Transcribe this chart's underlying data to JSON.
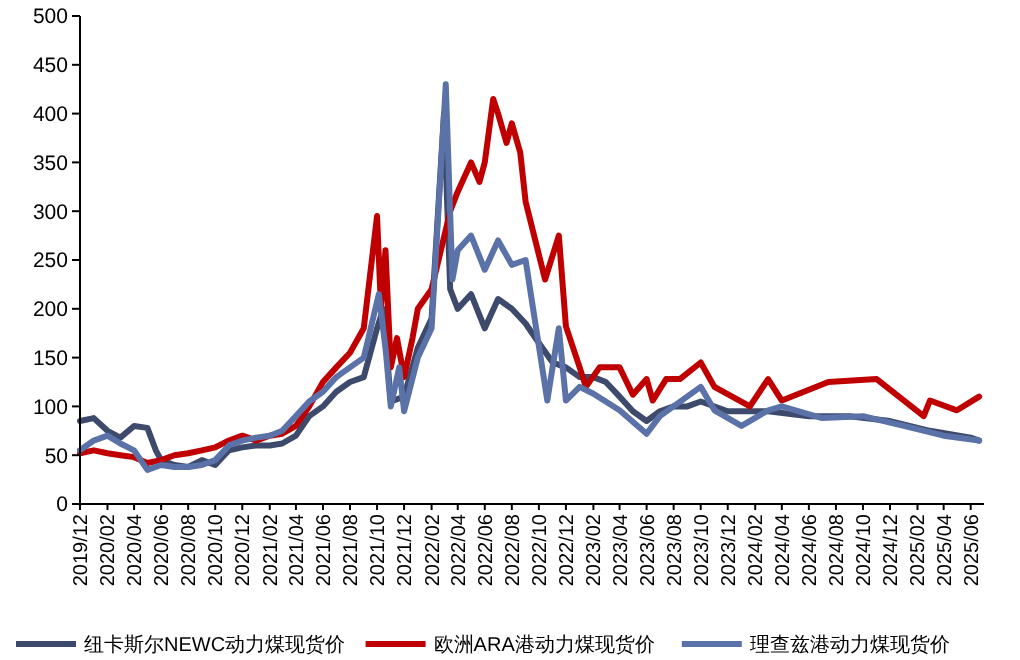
{
  "chart_data": {
    "type": "line",
    "xlim": [
      "2019-12",
      "2025-07"
    ],
    "ylim": [
      0,
      500
    ],
    "yticks": [
      0,
      50,
      100,
      150,
      200,
      250,
      300,
      350,
      400,
      450,
      500
    ],
    "xticks": [
      {
        "value": "2019-12",
        "label": "2019/12"
      },
      {
        "value": "2020-02",
        "label": "2020/02"
      },
      {
        "value": "2020-04",
        "label": "2020/04"
      },
      {
        "value": "2020-06",
        "label": "2020/06"
      },
      {
        "value": "2020-08",
        "label": "2020/08"
      },
      {
        "value": "2020-10",
        "label": "2020/10"
      },
      {
        "value": "2020-12",
        "label": "2020/12"
      },
      {
        "value": "2021-02",
        "label": "2021/02"
      },
      {
        "value": "2021-04",
        "label": "2021/04"
      },
      {
        "value": "2021-06",
        "label": "2021/06"
      },
      {
        "value": "2021-08",
        "label": "2021/08"
      },
      {
        "value": "2021-10",
        "label": "2021/10"
      },
      {
        "value": "2021-12",
        "label": "2021/12"
      },
      {
        "value": "2022-02",
        "label": "2022/02"
      },
      {
        "value": "2022-04",
        "label": "2022/04"
      },
      {
        "value": "2022-06",
        "label": "2022/06"
      },
      {
        "value": "2022-08",
        "label": "2022/08"
      },
      {
        "value": "2022-10",
        "label": "2022/10"
      },
      {
        "value": "2022-12",
        "label": "2022/12"
      },
      {
        "value": "2023-02",
        "label": "2023/02"
      },
      {
        "value": "2023-04",
        "label": "2023/04"
      },
      {
        "value": "2023-06",
        "label": "2023/06"
      },
      {
        "value": "2023-08",
        "label": "2023/08"
      },
      {
        "value": "2023-10",
        "label": "2023/10"
      },
      {
        "value": "2023-12",
        "label": "2023/12"
      },
      {
        "value": "2024-02",
        "label": "2024/02"
      },
      {
        "value": "2024-04",
        "label": "2024/04"
      },
      {
        "value": "2024-06",
        "label": "2024/06"
      },
      {
        "value": "2024-08",
        "label": "2024/08"
      },
      {
        "value": "2024-10",
        "label": "2024/10"
      },
      {
        "value": "2024-12",
        "label": "2024/12"
      },
      {
        "value": "2025-02",
        "label": "2025/02"
      },
      {
        "value": "2025-04",
        "label": "2025/04"
      },
      {
        "value": "2025-06",
        "label": "2025/06"
      }
    ],
    "grid": false,
    "legend": "bottom",
    "line_style": "solid",
    "marker": "none",
    "series": [
      {
        "name": "纽卡斯尔NEWC动力煤现货价",
        "color": "#3d4a6b",
        "x": [
          "2019-12-01",
          "2020-01-01",
          "2020-02-01",
          "2020-03-01",
          "2020-04-01",
          "2020-05-01",
          "2020-05-20",
          "2020-06-01",
          "2020-07-01",
          "2020-08-01",
          "2020-09-01",
          "2020-10-01",
          "2020-11-01",
          "2020-12-01",
          "2021-01-01",
          "2021-02-01",
          "2021-03-01",
          "2021-04-01",
          "2021-05-01",
          "2021-06-01",
          "2021-07-01",
          "2021-08-01",
          "2021-09-01",
          "2021-10-01",
          "2021-10-15",
          "2021-11-01",
          "2021-12-01",
          "2022-01-01",
          "2022-02-01",
          "2022-03-01",
          "2022-03-15",
          "2022-04-01",
          "2022-05-01",
          "2022-06-01",
          "2022-07-01",
          "2022-08-01",
          "2022-09-01",
          "2022-10-01",
          "2022-11-01",
          "2022-12-01",
          "2023-01-01",
          "2023-02-01",
          "2023-03-01",
          "2023-04-01",
          "2023-05-01",
          "2023-06-01",
          "2023-07-01",
          "2023-08-01",
          "2023-09-01",
          "2023-10-01",
          "2023-12-01",
          "2024-01-01",
          "2024-03-01",
          "2024-06-01",
          "2024-09-01",
          "2024-12-01",
          "2025-03-01",
          "2025-06-01",
          "2025-06-20"
        ],
        "values": [
          85,
          88,
          75,
          68,
          80,
          78,
          55,
          45,
          40,
          38,
          45,
          40,
          55,
          58,
          60,
          60,
          62,
          70,
          90,
          100,
          115,
          125,
          130,
          180,
          200,
          105,
          110,
          160,
          190,
          400,
          220,
          200,
          215,
          180,
          210,
          200,
          185,
          165,
          145,
          140,
          130,
          130,
          125,
          110,
          95,
          85,
          95,
          100,
          100,
          105,
          95,
          95,
          95,
          90,
          90,
          85,
          75,
          68,
          65
        ]
      },
      {
        "name": "欧洲ARA港动力煤现货价",
        "color": "#c00000",
        "x": [
          "2019-12-01",
          "2020-01-01",
          "2020-02-01",
          "2020-03-01",
          "2020-04-01",
          "2020-05-01",
          "2020-06-01",
          "2020-07-01",
          "2020-08-01",
          "2020-09-01",
          "2020-10-01",
          "2020-11-01",
          "2020-12-01",
          "2021-01-01",
          "2021-02-01",
          "2021-03-01",
          "2021-04-01",
          "2021-05-01",
          "2021-06-01",
          "2021-07-01",
          "2021-08-01",
          "2021-09-01",
          "2021-10-01",
          "2021-10-10",
          "2021-10-20",
          "2021-11-01",
          "2021-11-15",
          "2021-12-01",
          "2021-12-20",
          "2022-01-01",
          "2022-02-01",
          "2022-03-15",
          "2022-04-01",
          "2022-05-01",
          "2022-05-20",
          "2022-06-01",
          "2022-06-20",
          "2022-07-01",
          "2022-07-20",
          "2022-08-01",
          "2022-08-20",
          "2022-09-01",
          "2022-10-15",
          "2022-11-15",
          "2022-12-01",
          "2023-01-01",
          "2023-01-15",
          "2023-02-15",
          "2023-04-01",
          "2023-05-01",
          "2023-06-01",
          "2023-06-15",
          "2023-07-15",
          "2023-08-15",
          "2023-10-01",
          "2023-11-01",
          "2024-01-20",
          "2024-03-01",
          "2024-04-01",
          "2024-07-15",
          "2024-11-01",
          "2025-02-15",
          "2025-03-01",
          "2025-05-01",
          "2025-06-20"
        ],
        "values": [
          52,
          55,
          52,
          50,
          48,
          42,
          45,
          50,
          52,
          55,
          58,
          65,
          70,
          65,
          70,
          72,
          80,
          100,
          125,
          140,
          155,
          180,
          295,
          200,
          260,
          140,
          170,
          130,
          170,
          200,
          220,
          300,
          320,
          350,
          330,
          350,
          415,
          400,
          370,
          390,
          360,
          310,
          230,
          275,
          182,
          140,
          120,
          140,
          140,
          112,
          128,
          106,
          128,
          128,
          145,
          120,
          100,
          128,
          106,
          125,
          128,
          90,
          106,
          96,
          110
        ]
      },
      {
        "name": "理查兹港动力煤现货价",
        "color": "#5b72a8",
        "x": [
          "2019-12-01",
          "2020-01-01",
          "2020-02-01",
          "2020-03-01",
          "2020-04-01",
          "2020-05-01",
          "2020-06-01",
          "2020-07-01",
          "2020-08-01",
          "2020-09-01",
          "2020-10-01",
          "2020-11-01",
          "2020-12-01",
          "2021-01-01",
          "2021-02-01",
          "2021-03-01",
          "2021-04-01",
          "2021-05-01",
          "2021-06-01",
          "2021-07-01",
          "2021-08-01",
          "2021-09-01",
          "2021-10-05",
          "2021-10-20",
          "2021-11-01",
          "2021-11-20",
          "2021-12-01",
          "2022-01-01",
          "2022-02-01",
          "2022-03-05",
          "2022-03-20",
          "2022-04-01",
          "2022-05-01",
          "2022-06-01",
          "2022-07-01",
          "2022-08-01",
          "2022-09-01",
          "2022-10-20",
          "2022-11-15",
          "2022-12-01",
          "2023-01-01",
          "2023-02-01",
          "2023-04-01",
          "2023-06-01",
          "2023-07-01",
          "2023-10-01",
          "2023-11-01",
          "2024-01-01",
          "2024-03-01",
          "2024-04-01",
          "2024-07-01",
          "2024-10-01",
          "2025-01-01",
          "2025-04-01",
          "2025-06-20"
        ],
        "values": [
          55,
          65,
          70,
          62,
          55,
          35,
          40,
          38,
          38,
          40,
          45,
          60,
          65,
          68,
          70,
          75,
          90,
          105,
          115,
          130,
          140,
          150,
          215,
          160,
          100,
          140,
          95,
          150,
          180,
          430,
          230,
          260,
          275,
          240,
          270,
          245,
          250,
          106,
          180,
          106,
          120,
          113,
          96,
          72,
          90,
          120,
          96,
          80,
          96,
          100,
          88,
          90,
          80,
          70,
          65
        ]
      }
    ]
  }
}
